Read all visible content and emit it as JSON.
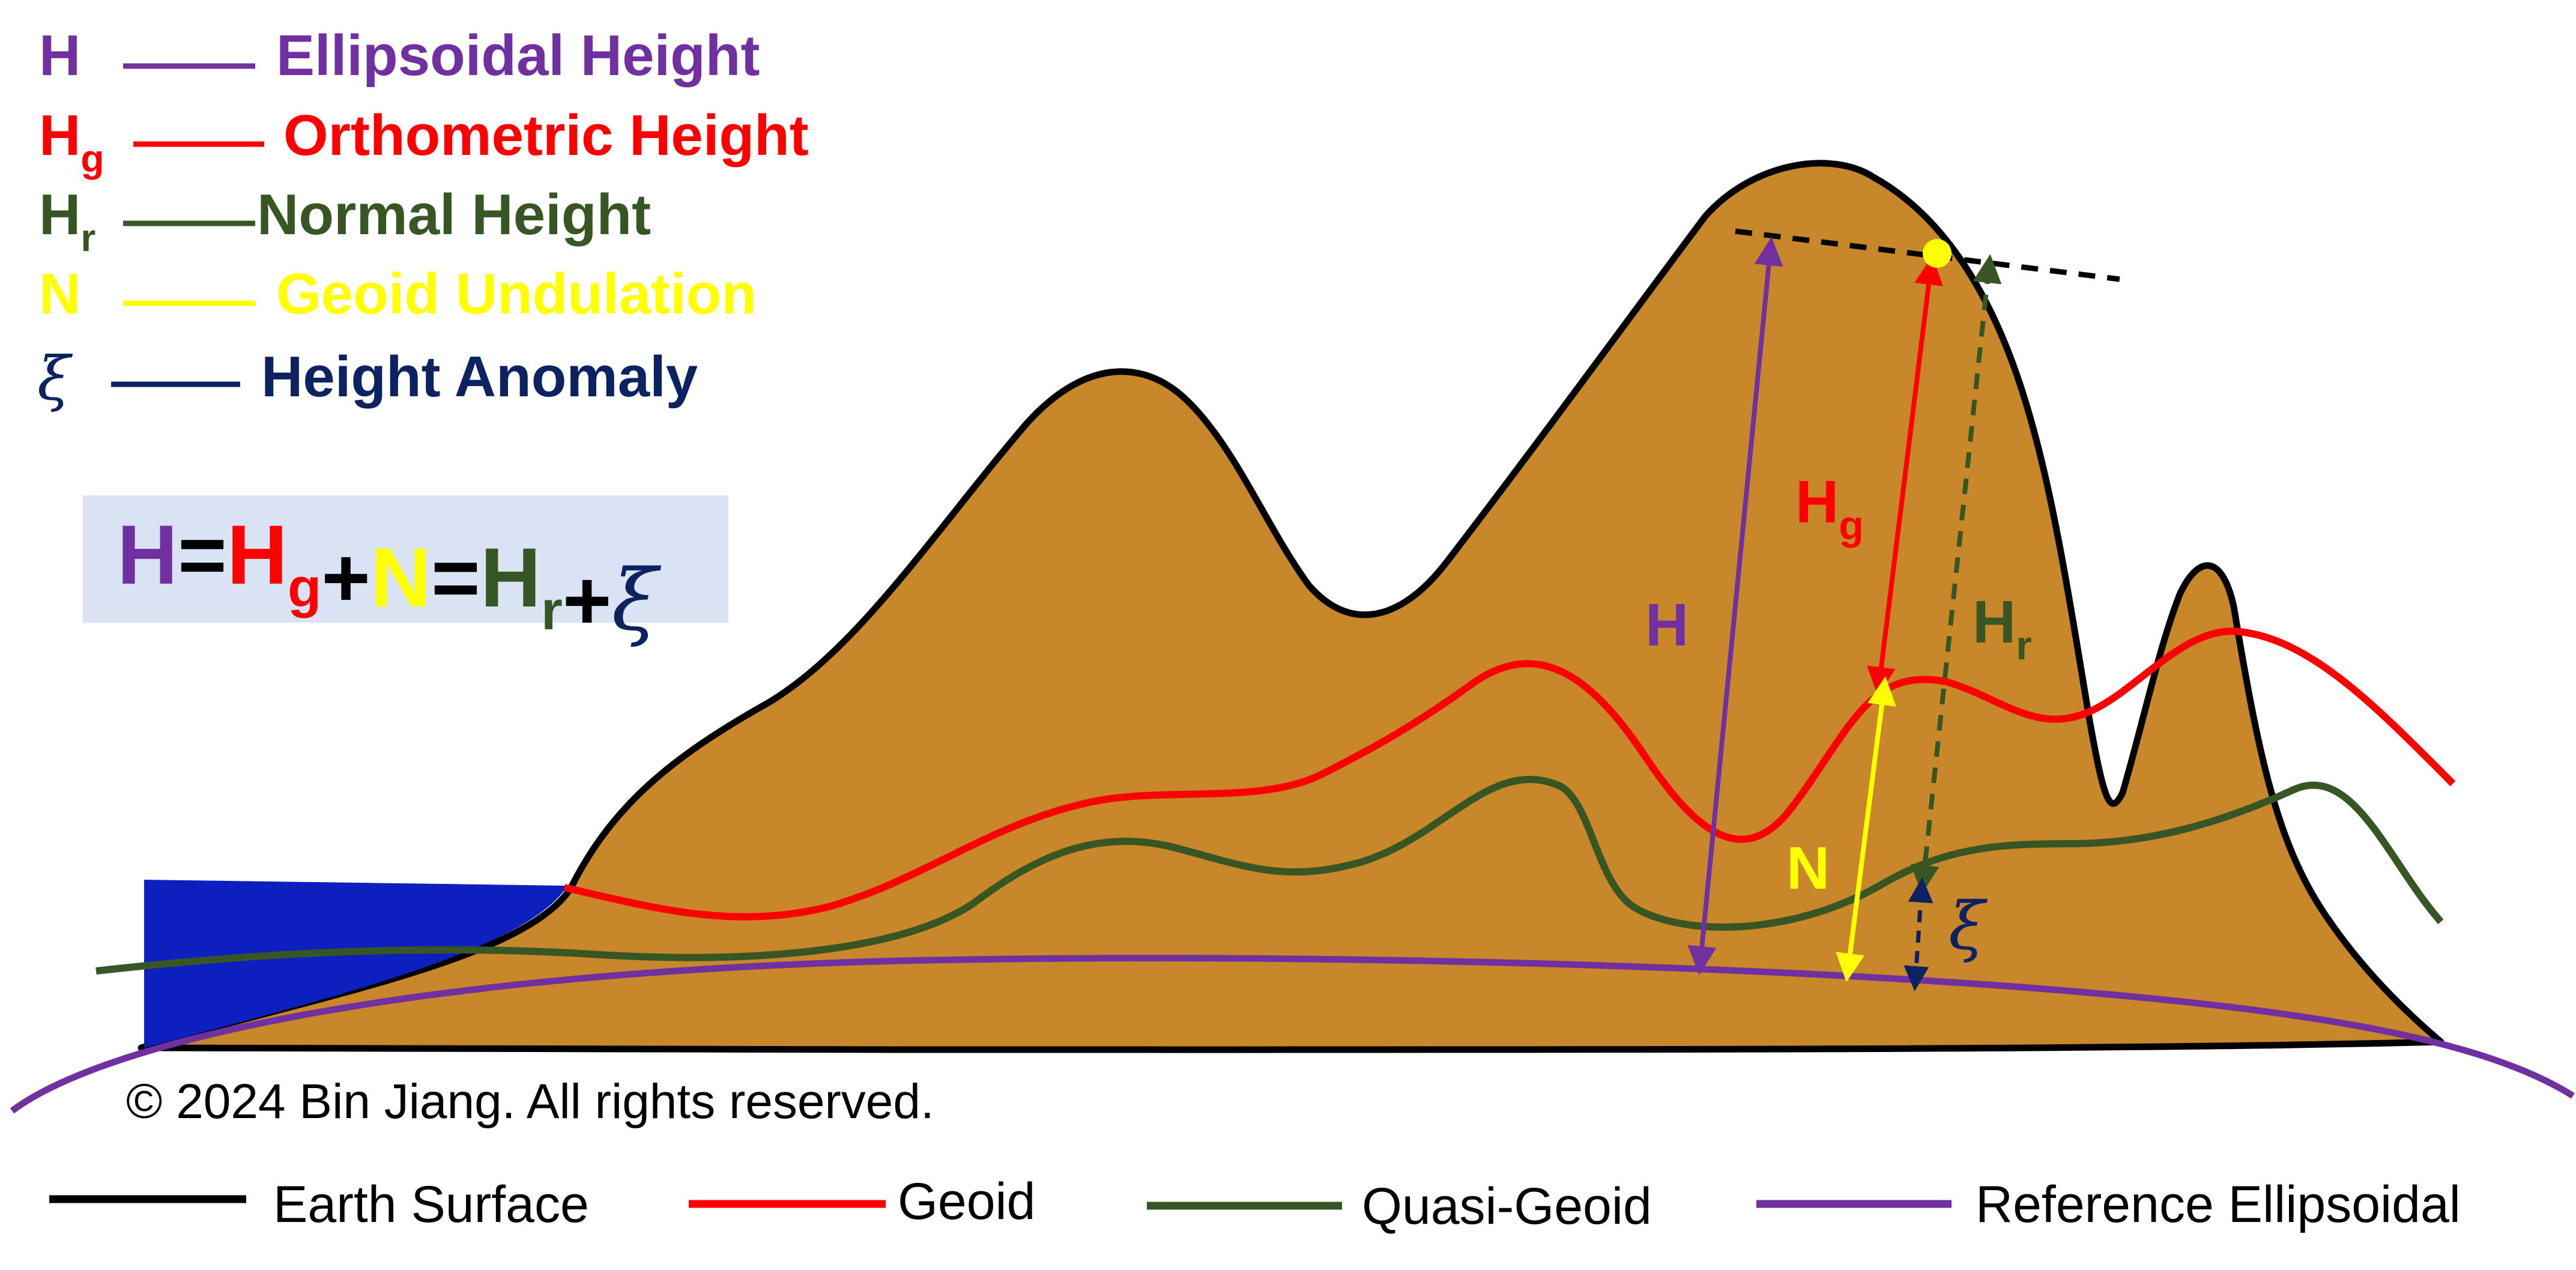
{
  "legend": {
    "items": [
      {
        "symbol": "H",
        "sub": "",
        "label": "Ellipsoidal Height",
        "color": "#7030A0"
      },
      {
        "symbol": "H",
        "sub": "g",
        "label": "Orthometric Height",
        "color": "#FF0000"
      },
      {
        "symbol": "H",
        "sub": "r",
        "label": "Normal Height",
        "color": "#375623"
      },
      {
        "symbol": "N",
        "sub": "",
        "label": "Geoid Undulation",
        "color": "#FFFF00"
      },
      {
        "symbol": "ξ",
        "sub": "",
        "label": "Height Anomaly",
        "color": "#0D2260"
      }
    ]
  },
  "formula": {
    "background": "#DAE3F3",
    "parts": [
      {
        "text": "H",
        "sub": "",
        "color": "#7030A0"
      },
      {
        "text": "=",
        "sub": "",
        "color": "#000000"
      },
      {
        "text": "H",
        "sub": "g",
        "color": "#FF0000"
      },
      {
        "text": "+",
        "sub": "",
        "color": "#000000"
      },
      {
        "text": "N",
        "sub": "",
        "color": "#FFFF00"
      },
      {
        "text": "=",
        "sub": "",
        "color": "#000000"
      },
      {
        "text": "H",
        "sub": "r",
        "color": "#375623"
      },
      {
        "text": "+",
        "sub": "",
        "color": "#000000"
      },
      {
        "text": "ξ",
        "sub": "",
        "color": "#0D2260"
      }
    ]
  },
  "measure_labels": {
    "H": {
      "text": "H",
      "sub": "",
      "color": "#7030A0"
    },
    "Hg": {
      "text": "H",
      "sub": "g",
      "color": "#FF0000"
    },
    "Hr": {
      "text": "H",
      "sub": "r",
      "color": "#375623"
    },
    "N": {
      "text": "N",
      "sub": "",
      "color": "#FFFF00"
    },
    "xi": {
      "text": "ξ",
      "sub": "",
      "color": "#0D2260"
    }
  },
  "copyright": "© 2024 Bin Jiang. All rights reserved.",
  "bottom_legend": [
    {
      "label": "Earth Surface",
      "color": "#000000"
    },
    {
      "label": "Geoid",
      "color": "#FF0000"
    },
    {
      "label": "Quasi-Geoid",
      "color": "#375623"
    },
    {
      "label": "Reference Ellipsoidal",
      "color": "#7030A0"
    }
  ],
  "colors": {
    "terrain": "#C8882A",
    "ocean": "#0B20BE",
    "earth_surface": "#000000",
    "geoid": "#FF0000",
    "quasi_geoid": "#375623",
    "ellipsoid": "#7030A0",
    "point": "#FFFF00"
  }
}
